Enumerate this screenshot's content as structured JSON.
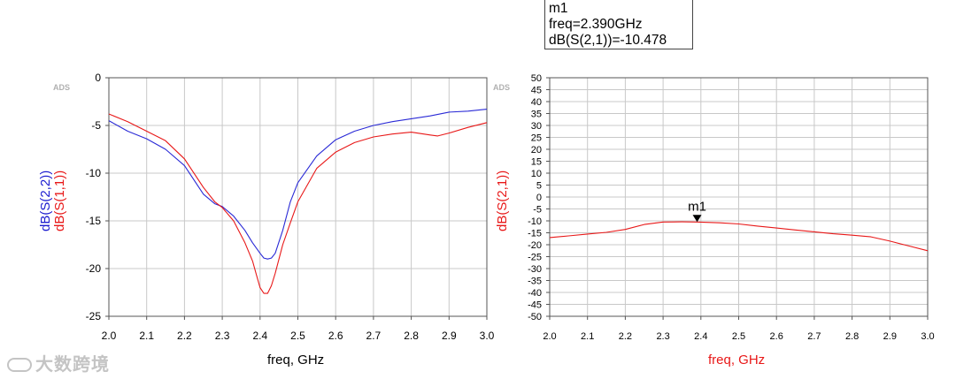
{
  "marker_readout": {
    "name": "m1",
    "freq_line": "freq=2.390GHz",
    "value_line": "dB(S(2,1))=-10.478"
  },
  "watermark_text": "大数跨境",
  "chart_data": [
    {
      "type": "line",
      "ads_tag": "ADS",
      "xlabel": "freq, GHz",
      "xlabel_color": "#000000",
      "ylabel_parts": [
        {
          "text": "dB(S(2,2))",
          "color": "#1c1ccf"
        },
        {
          "text": "dB(S(1,1))",
          "color": "#e81818"
        }
      ],
      "xlim": [
        2.0,
        3.0
      ],
      "ylim": [
        -25,
        0
      ],
      "x_ticks": [
        2.0,
        2.1,
        2.2,
        2.3,
        2.4,
        2.5,
        2.6,
        2.7,
        2.8,
        2.9,
        3.0
      ],
      "x_tick_labels": [
        "2.0",
        "2.1",
        "2.2",
        "2.3",
        "2.4",
        "2.5",
        "2.6",
        "2.7",
        "2.8",
        "2.9",
        "3.0"
      ],
      "y_ticks": [
        0,
        -5,
        -10,
        -15,
        -20,
        -25
      ],
      "y_tick_labels": [
        "0",
        "-5",
        "-10",
        "-15",
        "-20",
        "-25"
      ],
      "grid": true,
      "series": [
        {
          "name": "dB(S(2,2))",
          "color": "#2a2ad6",
          "x": [
            2.0,
            2.05,
            2.1,
            2.15,
            2.2,
            2.25,
            2.28,
            2.3,
            2.33,
            2.36,
            2.38,
            2.4,
            2.41,
            2.42,
            2.43,
            2.44,
            2.46,
            2.48,
            2.5,
            2.55,
            2.6,
            2.65,
            2.7,
            2.75,
            2.8,
            2.85,
            2.9,
            2.95,
            3.0
          ],
          "y": [
            -4.5,
            -5.6,
            -6.4,
            -7.5,
            -9.2,
            -12.2,
            -13.2,
            -13.5,
            -14.5,
            -16.0,
            -17.3,
            -18.4,
            -18.9,
            -19.0,
            -18.9,
            -18.4,
            -16.0,
            -13.0,
            -11.0,
            -8.2,
            -6.5,
            -5.6,
            -5.0,
            -4.6,
            -4.3,
            -4.0,
            -3.6,
            -3.5,
            -3.3
          ]
        },
        {
          "name": "dB(S(1,1))",
          "color": "#e81818",
          "x": [
            2.0,
            2.05,
            2.1,
            2.15,
            2.2,
            2.25,
            2.28,
            2.3,
            2.33,
            2.36,
            2.38,
            2.39,
            2.4,
            2.41,
            2.42,
            2.43,
            2.44,
            2.46,
            2.48,
            2.5,
            2.55,
            2.6,
            2.65,
            2.7,
            2.75,
            2.8,
            2.85,
            2.87,
            2.9,
            2.95,
            3.0
          ],
          "y": [
            -3.8,
            -4.6,
            -5.6,
            -6.6,
            -8.5,
            -11.5,
            -13.0,
            -13.6,
            -15.0,
            -17.3,
            -19.2,
            -20.6,
            -22.0,
            -22.6,
            -22.6,
            -21.8,
            -20.5,
            -17.5,
            -15.2,
            -13.0,
            -9.5,
            -7.8,
            -6.8,
            -6.2,
            -5.9,
            -5.7,
            -6.0,
            -6.1,
            -5.8,
            -5.2,
            -4.7
          ]
        }
      ]
    },
    {
      "type": "line",
      "ads_tag": "ADS",
      "xlabel": "freq, GHz",
      "xlabel_color": "#e81818",
      "ylabel_parts": [
        {
          "text": "dB(S(2,1))",
          "color": "#e81818"
        }
      ],
      "xlim": [
        2.0,
        3.0
      ],
      "ylim": [
        -50,
        50
      ],
      "x_ticks": [
        2.0,
        2.1,
        2.2,
        2.3,
        2.4,
        2.5,
        2.6,
        2.7,
        2.8,
        2.9,
        3.0
      ],
      "x_tick_labels": [
        "2.0",
        "2.1",
        "2.2",
        "2.3",
        "2.4",
        "2.5",
        "2.6",
        "2.7",
        "2.8",
        "2.9",
        "3.0"
      ],
      "y_ticks": [
        50,
        45,
        40,
        35,
        30,
        25,
        20,
        15,
        10,
        5,
        0,
        -5,
        -10,
        -15,
        -20,
        -25,
        -30,
        -35,
        -40,
        -45,
        -50
      ],
      "y_tick_labels": [
        "50",
        "45",
        "40",
        "35",
        "30",
        "25",
        "20",
        "15",
        "10",
        "5",
        "0",
        "-5",
        "-10",
        "-15",
        "-20",
        "-25",
        "-30",
        "-35",
        "-40",
        "-45",
        "-50"
      ],
      "grid": true,
      "marker": {
        "name": "m1",
        "x": 2.39,
        "y": -10.478
      },
      "series": [
        {
          "name": "dB(S(2,1))",
          "color": "#e81818",
          "x": [
            2.0,
            2.05,
            2.1,
            2.15,
            2.2,
            2.25,
            2.3,
            2.35,
            2.39,
            2.45,
            2.5,
            2.55,
            2.6,
            2.65,
            2.7,
            2.75,
            2.8,
            2.85,
            2.9,
            2.95,
            3.0
          ],
          "y": [
            -17.0,
            -16.3,
            -15.5,
            -14.8,
            -13.6,
            -11.5,
            -10.5,
            -10.4,
            -10.478,
            -10.8,
            -11.3,
            -12.2,
            -13.0,
            -13.8,
            -14.6,
            -15.4,
            -16.0,
            -16.7,
            -18.5,
            -20.5,
            -22.5
          ]
        }
      ]
    }
  ]
}
